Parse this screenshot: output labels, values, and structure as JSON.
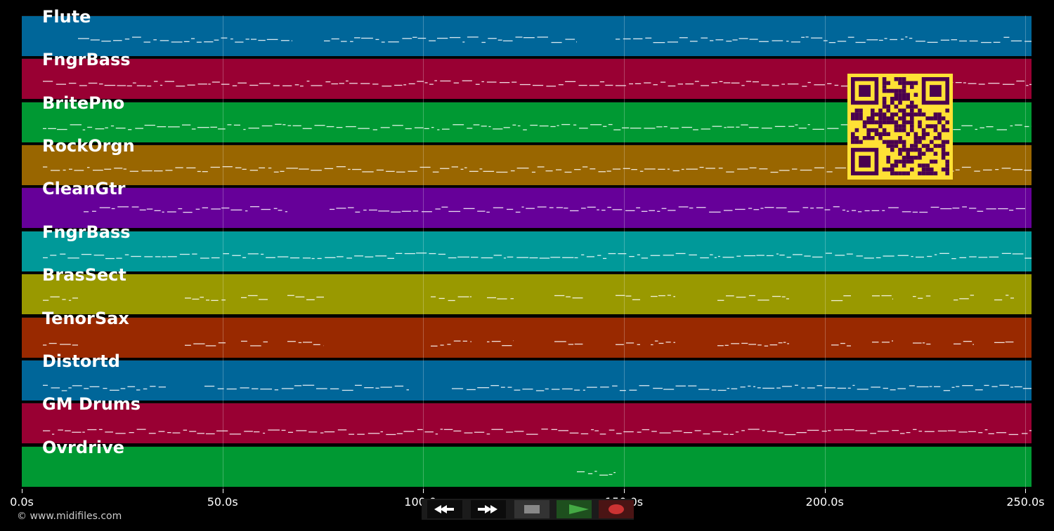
{
  "timeline": {
    "axis_ticks": [
      {
        "label": "0.0s",
        "value": 0
      },
      {
        "label": "50.0s",
        "value": 50
      },
      {
        "label": "100.0s",
        "value": 100
      },
      {
        "label": "150.0s",
        "value": 150
      },
      {
        "label": "200.0s",
        "value": 200
      },
      {
        "label": "250.0s",
        "value": 250
      }
    ],
    "max_seconds": 251.5
  },
  "tracks": [
    {
      "name": "Flute",
      "color": "#006699"
    },
    {
      "name": "FngrBass",
      "color": "#990033"
    },
    {
      "name": "BritePno",
      "color": "#009933"
    },
    {
      "name": "RockOrgn",
      "color": "#996600"
    },
    {
      "name": "CleanGtr",
      "color": "#660099"
    },
    {
      "name": "FngrBass",
      "color": "#009999"
    },
    {
      "name": "BrasSect",
      "color": "#999900"
    },
    {
      "name": "TenorSax",
      "color": "#992900"
    },
    {
      "name": "Distortd",
      "color": "#006699"
    },
    {
      "name": "GM Drums",
      "color": "#990033"
    },
    {
      "name": "Ovrdrive",
      "color": "#009933"
    }
  ],
  "footer": {
    "copyright": "© www.midifiles.com"
  },
  "transport": {
    "rewind_icon": "rewind-icon",
    "fast_forward_icon": "fast-forward-icon",
    "stop_icon": "stop-icon",
    "play_icon": "play-icon",
    "record_icon": "record-icon",
    "stop_color": "#888888",
    "play_color": "#44aa44",
    "record_color": "#cc3333"
  },
  "qr_colors": {
    "bg": "#ffe135",
    "fg": "#4a004f"
  }
}
